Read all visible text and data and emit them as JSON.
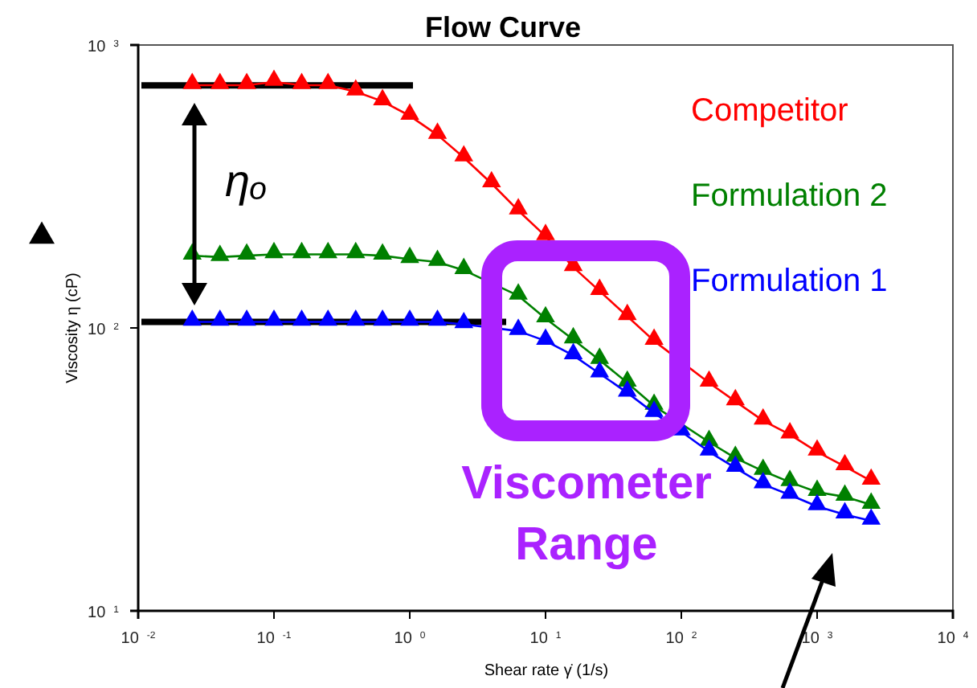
{
  "chart_data": {
    "type": "line",
    "title": "Flow Curve",
    "xlabel": "Shear rate γ̇ (1/s)",
    "ylabel": "Viscosity η (cP)",
    "log": "xy",
    "marker": "triangle",
    "line_style": "solid",
    "legend": "top right",
    "xlim": [
      0.01,
      10000
    ],
    "ylim": [
      10,
      1000
    ],
    "xticks": [
      {
        "value": 0.01,
        "label": "10$^{-2}$"
      },
      {
        "value": 0.1,
        "label": "10$^{-1}$"
      },
      {
        "value": 1,
        "label": "10$^{0}$"
      },
      {
        "value": 10,
        "label": "10$^{1}$"
      },
      {
        "value": 100,
        "label": "10$^{2}$"
      },
      {
        "value": 1000,
        "label": "10$^{3}$"
      },
      {
        "value": 10000,
        "label": "10$^{4}$"
      }
    ],
    "yticks": [
      {
        "value": 10,
        "label": "10$^{1}$"
      },
      {
        "value": 100,
        "label": "10$^{2}$"
      },
      {
        "value": 1000,
        "label": "10$^{3}$"
      }
    ],
    "x": [
      0.025,
      0.04,
      0.063,
      0.1,
      0.16,
      0.25,
      0.4,
      0.63,
      1,
      1.6,
      2.5,
      4,
      6.3,
      10,
      16,
      25,
      40,
      63,
      100,
      160,
      250,
      400,
      630,
      1000,
      1600,
      2500
    ],
    "series": [
      {
        "name": "Competitor",
        "color": "#ff0000",
        "values": [
          721,
          721,
          721,
          740,
          721,
          721,
          684,
          632,
          562,
          481,
          400,
          324,
          260,
          211,
          164,
          135,
          110,
          90,
          null,
          64,
          55,
          47,
          42,
          36.5,
          32.4,
          28.8
        ]
      },
      {
        "name": "Formulation 2",
        "color": "#008000",
        "values": [
          180,
          178,
          180,
          182,
          182,
          182,
          182,
          180,
          175,
          171,
          160,
          null,
          130,
          108,
          91,
          77,
          64,
          53,
          null,
          39.5,
          34.7,
          31.2,
          28.5,
          26.3,
          25.3,
          23.7
        ]
      },
      {
        "name": "Formulation 1",
        "color": "#0000ff",
        "values": [
          105,
          105,
          105,
          105,
          105,
          105,
          105,
          105,
          105,
          105,
          103,
          null,
          97.5,
          90,
          80,
          69,
          59,
          50,
          43,
          36.5,
          32,
          28,
          25.7,
          23.4,
          21.9,
          20.8
        ]
      }
    ],
    "ref_lines": [
      {
        "axis": "y",
        "value": 720,
        "color": "#000000"
      },
      {
        "axis": "y",
        "value": 105,
        "color": "#000000"
      }
    ],
    "annotations": [
      "ηₒ",
      "Viscometer Range"
    ]
  }
}
